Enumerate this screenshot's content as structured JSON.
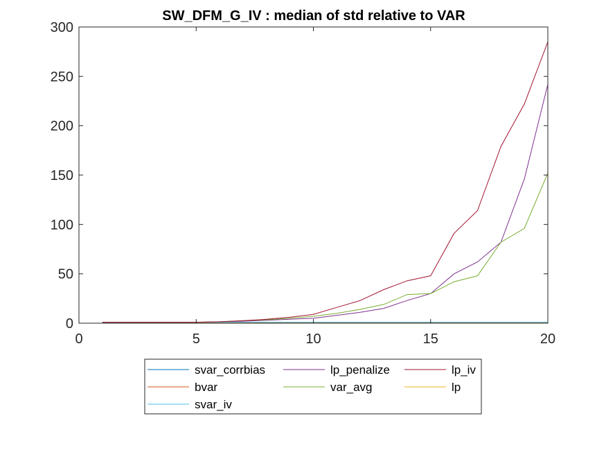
{
  "chart_data": {
    "type": "line",
    "title": "SW_DFM_G_IV : median of std relative to VAR",
    "xlabel": "",
    "ylabel": "",
    "xlim": [
      0,
      20
    ],
    "ylim": [
      0,
      300
    ],
    "xticks": [
      0,
      5,
      10,
      15,
      20
    ],
    "yticks": [
      0,
      50,
      100,
      150,
      200,
      250,
      300
    ],
    "grid": false,
    "legend_placement": "below-center",
    "legend_columns": 3,
    "x": [
      1,
      2,
      3,
      4,
      5,
      6,
      7,
      8,
      9,
      10,
      11,
      12,
      13,
      14,
      15,
      16,
      17,
      18,
      19,
      20
    ],
    "series": [
      {
        "name": "svar_corrbias",
        "color": "#0072BD",
        "values": [
          1,
          1,
          1,
          1,
          1,
          1,
          1,
          1,
          1,
          1,
          1,
          1,
          1,
          1,
          1,
          1,
          1,
          1,
          1,
          1
        ]
      },
      {
        "name": "bvar",
        "color": "#D95319",
        "values": [
          0.9,
          0.9,
          0.9,
          0.9,
          0.9,
          0.9,
          0.9,
          0.9,
          0.9,
          0.9,
          0.9,
          0.9,
          0.9,
          0.9,
          0.9,
          0.9,
          0.9,
          0.9,
          0.9,
          0.9
        ]
      },
      {
        "name": "lp",
        "color": "#EDB120",
        "values": [
          1,
          0.9,
          0.8,
          0.8,
          0.8,
          0.8,
          0.8,
          0.8,
          0.8,
          0.8,
          0.8,
          0.8,
          0.8,
          0.8,
          0.8,
          0.8,
          0.8,
          0.8,
          0.8,
          0.8
        ]
      },
      {
        "name": "lp_penalize",
        "color": "#7E2F8E",
        "values": [
          1,
          1,
          1,
          1,
          1,
          1.5,
          2,
          3,
          4,
          5,
          8,
          11,
          15,
          23,
          30,
          50,
          62,
          82,
          146,
          242
        ]
      },
      {
        "name": "var_avg",
        "color": "#77AC30",
        "values": [
          1,
          1,
          1,
          1,
          1,
          1.5,
          2.5,
          3.5,
          5,
          7,
          10,
          14,
          19,
          29,
          30,
          42,
          48,
          82,
          96,
          152
        ]
      },
      {
        "name": "svar_iv",
        "color": "#4DBEEE",
        "values": [
          1,
          1,
          1,
          1,
          1,
          1,
          1,
          1,
          1,
          1,
          1,
          1,
          1,
          1,
          1,
          1,
          1,
          1,
          1,
          1
        ]
      },
      {
        "name": "lp_iv",
        "color": "#A2142F",
        "values": [
          1,
          1,
          1,
          1,
          1,
          1.5,
          2.5,
          4,
          6,
          9,
          16,
          23,
          34,
          43,
          48,
          91,
          114,
          179,
          222,
          285
        ]
      }
    ],
    "legend_order": [
      "svar_corrbias",
      "lp_penalize",
      "lp_iv",
      "bvar",
      "var_avg",
      "lp",
      "svar_iv"
    ]
  }
}
